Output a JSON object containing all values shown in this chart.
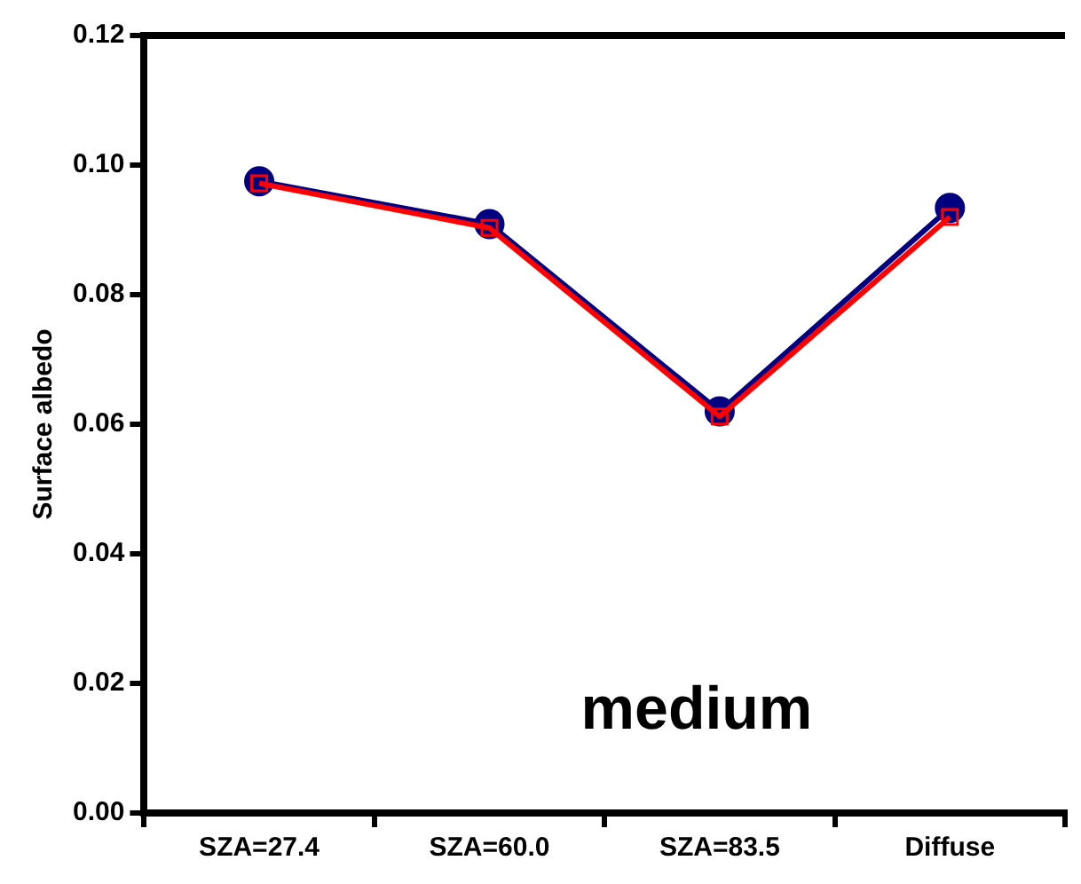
{
  "chart_data": {
    "type": "line",
    "ylabel": "Surface albedo",
    "categories": [
      "SZA=27.4",
      "SZA=60.0",
      "SZA=83.5",
      "Diffuse"
    ],
    "series": [
      {
        "color": "#000080",
        "marker": "circle",
        "values": [
          0.0975,
          0.0909,
          0.062,
          0.0934
        ]
      },
      {
        "color": "#ff0000",
        "marker": "square",
        "values": [
          0.0972,
          0.0903,
          0.0612,
          0.092
        ]
      }
    ],
    "ylim": [
      0,
      0.12
    ],
    "yticks": [
      {
        "value": 0,
        "label": "0.00"
      },
      {
        "value": 0.02,
        "label": "0.02"
      },
      {
        "value": 0.04,
        "label": "0.04"
      },
      {
        "value": 0.06,
        "label": "0.06"
      },
      {
        "value": 0.08,
        "label": "0.08"
      },
      {
        "value": 0.1,
        "label": "0.10"
      },
      {
        "value": 0.12,
        "label": "0.12"
      }
    ],
    "annotations": [
      "medium"
    ],
    "grid": false,
    "legend": false,
    "line_style": "solid"
  }
}
